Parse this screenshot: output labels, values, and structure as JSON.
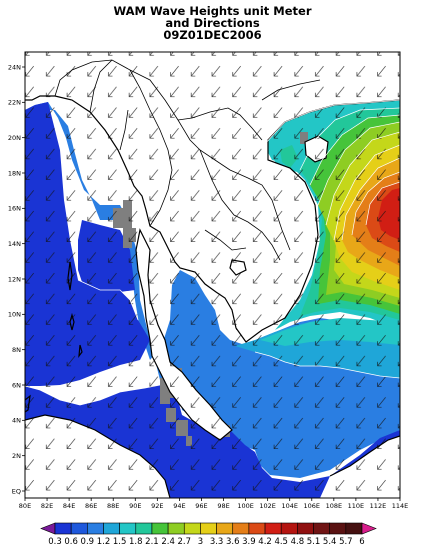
{
  "title": {
    "line1": "WAM Wave Heights unit Meter",
    "line2": "and Directions",
    "line3": "09Z01DEC2006"
  },
  "axes": {
    "x_ticks": [
      "80E",
      "82E",
      "84E",
      "86E",
      "88E",
      "90E",
      "92E",
      "94E",
      "96E",
      "98E",
      "100E",
      "102E",
      "104E",
      "106E",
      "108E",
      "110E",
      "112E",
      "114E"
    ],
    "y_ticks": [
      "EQ",
      "2N",
      "4N",
      "6N",
      "8N",
      "10N",
      "12N",
      "14N",
      "16N",
      "18N",
      "20N",
      "22N",
      "24N"
    ]
  },
  "colorbar": {
    "labels": [
      "0.3",
      "0.6",
      "0.9",
      "1.2",
      "1.5",
      "1.8",
      "2.1",
      "2.4",
      "2.7",
      "3",
      "3.3",
      "3.6",
      "3.9",
      "4.2",
      "4.5",
      "4.8",
      "5.1",
      "5.4",
      "5.7",
      "6"
    ],
    "colors": [
      "#7a1a9a",
      "#1a34d4",
      "#1e58dc",
      "#2a7ee2",
      "#1fa6d8",
      "#23c6c6",
      "#22c79a",
      "#46c43a",
      "#8ecd23",
      "#c4d71a",
      "#e5cf18",
      "#e8a718",
      "#e47e18",
      "#db4a16",
      "#d11e14",
      "#b41410",
      "#901010",
      "#701414",
      "#5a1212",
      "#451010",
      "#d81e8c"
    ]
  },
  "map": {
    "land_color": "#ffffff",
    "missing_color": "#7f7f7f",
    "coast_color": "#000000",
    "colors": {
      "wh_1_2": "#1a34d4",
      "wh_1_5": "#2a7ee2",
      "wh_1_8": "#1fa6d8",
      "wh_2_1": "#23c6c6",
      "wh_2_4": "#22c79a",
      "wh_2_7": "#46c43a",
      "wh_3_0": "#8ecd23",
      "wh_3_3": "#c4d71a",
      "wh_3_6": "#e5cf18",
      "wh_3_9": "#e8a718",
      "wh_4_2": "#e47e18",
      "wh_4_5": "#db4a16"
    }
  }
}
